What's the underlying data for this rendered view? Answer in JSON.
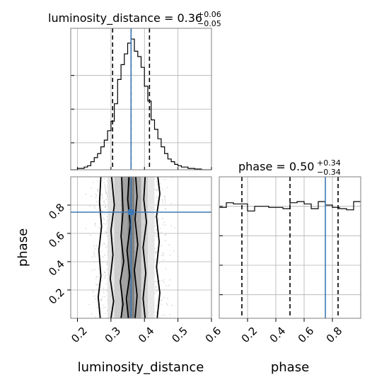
{
  "colors": {
    "truth": "#3b78b4",
    "line": "#000000",
    "grid": "#b0b0b0",
    "density_dark": "#555555",
    "density_light": "#dcdcdc"
  },
  "titles": {
    "luminosity_distance": {
      "prefix": "luminosity_distance = 0.36",
      "sup": "+0.06",
      "sub": "−0.05"
    },
    "phase": {
      "prefix": "phase = 0.50",
      "sup": "+0.34",
      "sub": "−0.34"
    }
  },
  "axes": {
    "x_labels": [
      "luminosity_distance",
      "phase"
    ],
    "y_labels": [
      "phase"
    ]
  },
  "chart_data": [
    {
      "type": "histogram",
      "panel": "luminosity_distance marginal",
      "x": [
        0.18,
        0.19,
        0.2,
        0.21,
        0.22,
        0.23,
        0.24,
        0.25,
        0.26,
        0.27,
        0.28,
        0.29,
        0.3,
        0.31,
        0.32,
        0.33,
        0.34,
        0.35,
        0.36,
        0.37,
        0.38,
        0.39,
        0.4,
        0.41,
        0.42,
        0.43,
        0.44,
        0.45,
        0.46,
        0.47,
        0.48,
        0.49,
        0.5,
        0.51,
        0.52,
        0.53,
        0.54,
        0.55,
        0.56,
        0.57,
        0.58,
        0.59,
        0.6
      ],
      "values": [
        0,
        0,
        0.01,
        0.01,
        0.02,
        0.03,
        0.06,
        0.09,
        0.12,
        0.17,
        0.22,
        0.29,
        0.36,
        0.49,
        0.67,
        0.78,
        0.86,
        0.94,
        0.97,
        0.88,
        0.84,
        0.76,
        0.62,
        0.51,
        0.37,
        0.3,
        0.23,
        0.17,
        0.12,
        0.08,
        0.06,
        0.04,
        0.03,
        0.02,
        0.02,
        0.01,
        0.01,
        0.005,
        0.005,
        0,
        0,
        0
      ],
      "xlim": [
        0.18,
        0.6
      ],
      "xticks": [
        0.2,
        0.3,
        0.4,
        0.5,
        0.6
      ],
      "quantiles": [
        0.305,
        0.36,
        0.415
      ],
      "truth": 0.36,
      "grid": true
    },
    {
      "type": "histogram",
      "panel": "phase marginal",
      "x": [
        0.0,
        0.05,
        0.1,
        0.15,
        0.2,
        0.25,
        0.3,
        0.35,
        0.4,
        0.45,
        0.5,
        0.55,
        0.6,
        0.65,
        0.7,
        0.75,
        0.8,
        0.85,
        0.9,
        0.95,
        1.0
      ],
      "values": [
        0.94,
        0.98,
        0.97,
        0.97,
        0.91,
        0.95,
        0.95,
        0.94,
        0.94,
        0.93,
        0.98,
        0.99,
        0.97,
        0.93,
        0.99,
        0.96,
        0.94,
        0.93,
        0.92,
        0.99
      ],
      "xlim": [
        0.0,
        1.0
      ],
      "xticks": [
        0.2,
        0.4,
        0.6,
        0.8
      ],
      "quantiles": [
        0.16,
        0.5,
        0.84
      ],
      "truth": 0.75,
      "grid": true
    },
    {
      "type": "scatter",
      "panel": "luminosity_distance vs phase",
      "x_name": "luminosity_distance",
      "y_name": "phase",
      "xlim": [
        0.18,
        0.6
      ],
      "ylim": [
        0.0,
        1.0
      ],
      "xticks": [
        0.2,
        0.3,
        0.4,
        0.5,
        0.6
      ],
      "yticks": [
        0.2,
        0.4,
        0.6,
        0.8
      ],
      "truth": {
        "x": 0.36,
        "y": 0.75
      },
      "density_columns": [
        {
          "x": 0.3,
          "width": 0.02,
          "shade": "#e2e2e2"
        },
        {
          "x": 0.32,
          "width": 0.02,
          "shade": "#c8c8c8"
        },
        {
          "x": 0.34,
          "width": 0.02,
          "shade": "#9a9a9a"
        },
        {
          "x": 0.36,
          "width": 0.02,
          "shade": "#767676"
        },
        {
          "x": 0.38,
          "width": 0.02,
          "shade": "#a4a4a4"
        },
        {
          "x": 0.4,
          "width": 0.02,
          "shade": "#cfcfcf"
        },
        {
          "x": 0.42,
          "width": 0.02,
          "shade": "#e6e6e6"
        }
      ],
      "contours": [
        [
          [
            0.268,
            0.0
          ],
          [
            0.262,
            0.15
          ],
          [
            0.27,
            0.3
          ],
          [
            0.264,
            0.48
          ],
          [
            0.272,
            0.65
          ],
          [
            0.266,
            0.82
          ],
          [
            0.27,
            1.0
          ]
        ],
        [
          [
            0.3,
            0.0
          ],
          [
            0.308,
            0.12
          ],
          [
            0.298,
            0.28
          ],
          [
            0.306,
            0.45
          ],
          [
            0.3,
            0.62
          ],
          [
            0.31,
            0.8
          ],
          [
            0.302,
            1.0
          ]
        ],
        [
          [
            0.33,
            0.0
          ],
          [
            0.336,
            0.1
          ],
          [
            0.328,
            0.26
          ],
          [
            0.338,
            0.4
          ],
          [
            0.33,
            0.58
          ],
          [
            0.336,
            0.76
          ],
          [
            0.332,
            1.0
          ]
        ],
        [
          [
            0.352,
            0.0
          ],
          [
            0.346,
            0.14
          ],
          [
            0.356,
            0.3
          ],
          [
            0.348,
            0.48
          ],
          [
            0.358,
            0.66
          ],
          [
            0.35,
            0.84
          ],
          [
            0.354,
            1.0
          ]
        ],
        [
          [
            0.372,
            0.0
          ],
          [
            0.378,
            0.16
          ],
          [
            0.37,
            0.34
          ],
          [
            0.38,
            0.52
          ],
          [
            0.372,
            0.7
          ],
          [
            0.378,
            0.86
          ],
          [
            0.374,
            1.0
          ]
        ],
        [
          [
            0.402,
            0.0
          ],
          [
            0.396,
            0.14
          ],
          [
            0.404,
            0.32
          ],
          [
            0.396,
            0.5
          ],
          [
            0.406,
            0.68
          ],
          [
            0.398,
            0.84
          ],
          [
            0.402,
            1.0
          ]
        ],
        [
          [
            0.438,
            0.0
          ],
          [
            0.446,
            0.18
          ],
          [
            0.436,
            0.36
          ],
          [
            0.444,
            0.54
          ],
          [
            0.436,
            0.72
          ],
          [
            0.446,
            0.88
          ],
          [
            0.44,
            1.0
          ]
        ]
      ]
    }
  ]
}
